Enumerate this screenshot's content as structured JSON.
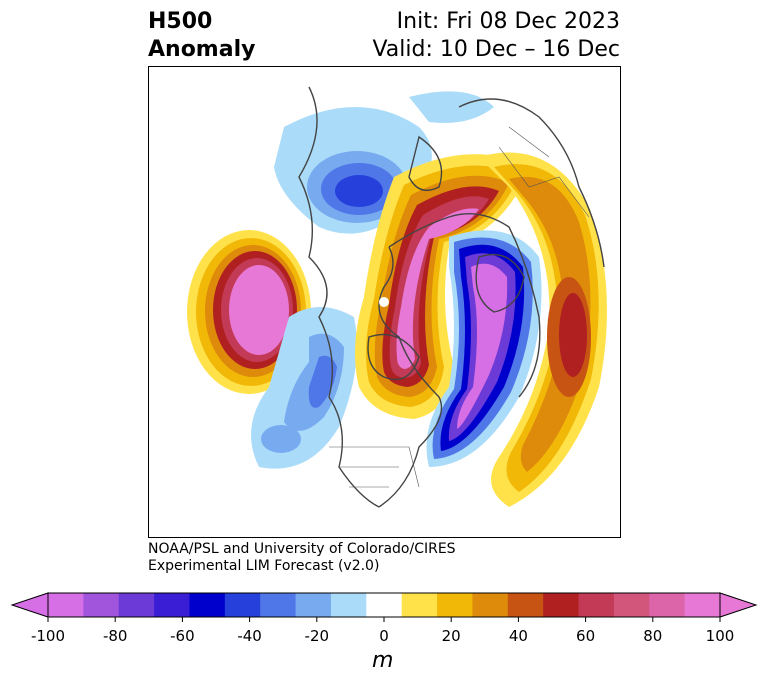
{
  "header": {
    "title_line1": "H500",
    "title_line2": "Anomaly",
    "init": "Init: Fri 08 Dec 2023",
    "valid": "Valid: 10 Dec – 16 Dec"
  },
  "credit": {
    "line1": "NOAA/PSL and University of Colorado/CIRES",
    "line2": "Experimental LIM Forecast (v2.0)"
  },
  "colorbar": {
    "unit": "m",
    "levels": [
      -100,
      -90,
      -80,
      -70,
      -60,
      -50,
      -40,
      -30,
      -20,
      -10,
      10,
      20,
      30,
      40,
      50,
      60,
      70,
      80,
      90,
      100
    ],
    "tick_labels": [
      "-100",
      "-80",
      "-60",
      "-40",
      "-20",
      "0",
      "20",
      "40",
      "60",
      "80",
      "100"
    ],
    "colors": [
      "#d66ee6",
      "#a055dc",
      "#6c3ad6",
      "#3a1ed6",
      "#0000cc",
      "#2640dc",
      "#4f77e8",
      "#78aaf0",
      "#aadcfa",
      "#ffffff",
      "#ffe24a",
      "#f2b808",
      "#de8a0a",
      "#c85414",
      "#b02020",
      "#c23a55",
      "#d2567c",
      "#dc64a8",
      "#e878d6"
    ],
    "extend_low_color": "#d66ee6",
    "extend_high_color": "#e878d6"
  }
}
